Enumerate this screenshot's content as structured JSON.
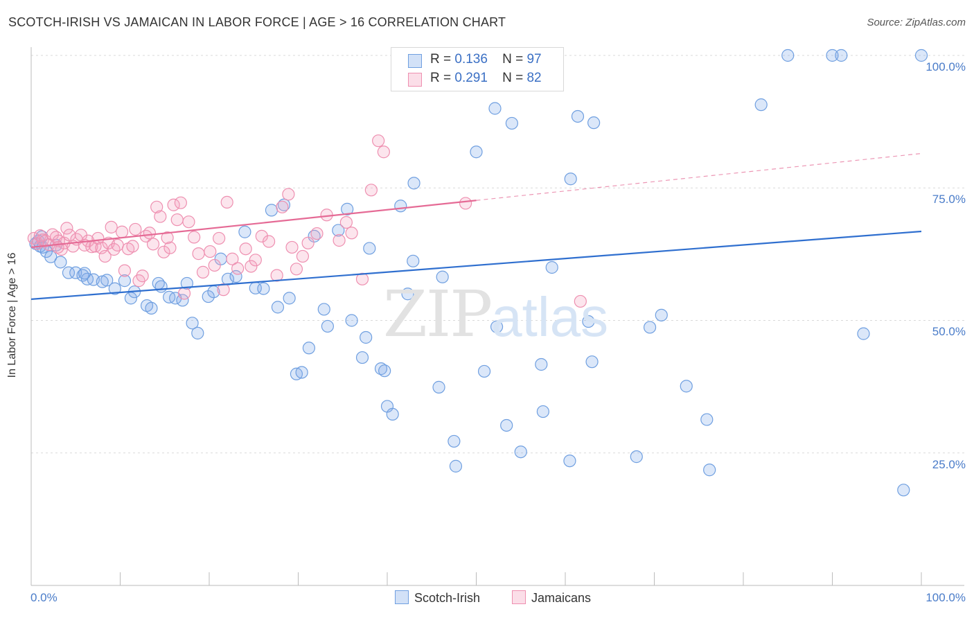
{
  "title": "SCOTCH-IRISH VS JAMAICAN IN LABOR FORCE | AGE > 16 CORRELATION CHART",
  "source": "Source: ZipAtlas.com",
  "watermark": {
    "zip": "ZIP",
    "atlas": "atlas"
  },
  "legend_top": [
    {
      "r_label": "R =",
      "r_value": "0.136",
      "n_label": "N =",
      "n_value": "97"
    },
    {
      "r_label": "R =",
      "r_value": "0.291",
      "n_label": "N =",
      "n_value": "82"
    }
  ],
  "legend_bottom": [
    {
      "name": "Scotch-Irish"
    },
    {
      "name": "Jamaicans"
    }
  ],
  "colors": {
    "scotch_fill": "rgba(127,170,232,0.28)",
    "scotch_stroke": "#6f9fe0",
    "scotch_line": "#2f6fcf",
    "jam_fill": "rgba(244,160,190,0.28)",
    "jam_stroke": "#ee8fb0",
    "jam_line": "#e56a95",
    "tick_text": "#4a7cc9",
    "grid": "#d9d9d9"
  },
  "chart_data": {
    "type": "scatter",
    "title": "SCOTCH-IRISH VS JAMAICAN IN LABOR FORCE | AGE > 16 CORRELATION CHART",
    "xlabel": "",
    "ylabel": "In Labor Force | Age > 16",
    "xlim": [
      0,
      100
    ],
    "ylim": [
      0,
      104
    ],
    "x_tick_labels": [
      "0.0%",
      "100.0%"
    ],
    "y_ticks": [
      25,
      50,
      75,
      100
    ],
    "y_tick_labels": [
      "25.0%",
      "50.0%",
      "75.0%",
      "100.0%"
    ],
    "grid": "horizontal dashed",
    "series": [
      {
        "name": "Scotch-Irish",
        "trend": {
          "x": [
            0,
            100
          ],
          "y": [
            54.0,
            66.8
          ],
          "dashed_from": null
        },
        "points": [
          [
            0.5,
            64.5
          ],
          [
            0.8,
            65.0
          ],
          [
            1.0,
            64.0
          ],
          [
            1.3,
            63.8
          ],
          [
            1.7,
            63.0
          ],
          [
            2.2,
            62.0
          ],
          [
            3.3,
            61.0
          ],
          [
            4.2,
            59.0
          ],
          [
            5.0,
            59.0
          ],
          [
            5.8,
            58.5
          ],
          [
            6.3,
            57.8
          ],
          [
            7.0,
            57.7
          ],
          [
            8.0,
            57.3
          ],
          [
            8.5,
            57.6
          ],
          [
            9.4,
            56.0
          ],
          [
            10.5,
            57.5
          ],
          [
            11.2,
            54.2
          ],
          [
            11.6,
            55.4
          ],
          [
            13.0,
            52.8
          ],
          [
            13.5,
            52.3
          ],
          [
            14.3,
            57.0
          ],
          [
            14.6,
            56.4
          ],
          [
            15.5,
            54.4
          ],
          [
            16.2,
            54.2
          ],
          [
            17.0,
            53.8
          ],
          [
            17.5,
            57.0
          ],
          [
            18.1,
            49.5
          ],
          [
            18.7,
            47.6
          ],
          [
            19.9,
            54.5
          ],
          [
            20.5,
            55.4
          ],
          [
            21.3,
            61.6
          ],
          [
            22.1,
            57.8
          ],
          [
            23.0,
            58.3
          ],
          [
            24.0,
            66.7
          ],
          [
            25.2,
            56.1
          ],
          [
            26.1,
            56.0
          ],
          [
            27.0,
            70.8
          ],
          [
            27.7,
            52.5
          ],
          [
            28.4,
            71.8
          ],
          [
            29.0,
            54.2
          ],
          [
            29.8,
            39.9
          ],
          [
            30.4,
            40.2
          ],
          [
            31.2,
            44.8
          ],
          [
            31.8,
            65.9
          ],
          [
            32.9,
            52.1
          ],
          [
            33.3,
            48.9
          ],
          [
            34.5,
            67.0
          ],
          [
            35.5,
            71.0
          ],
          [
            36.0,
            50.0
          ],
          [
            37.2,
            43.0
          ],
          [
            37.6,
            46.8
          ],
          [
            38.0,
            63.6
          ],
          [
            39.3,
            40.9
          ],
          [
            39.7,
            40.5
          ],
          [
            40.0,
            33.8
          ],
          [
            40.6,
            32.3
          ],
          [
            41.5,
            71.6
          ],
          [
            42.3,
            55.0
          ],
          [
            42.9,
            61.2
          ],
          [
            43.0,
            75.9
          ],
          [
            45.8,
            37.4
          ],
          [
            46.2,
            58.2
          ],
          [
            47.5,
            27.2
          ],
          [
            47.7,
            22.5
          ],
          [
            50.0,
            81.8
          ],
          [
            50.9,
            40.4
          ],
          [
            52.1,
            90.0
          ],
          [
            52.3,
            48.8
          ],
          [
            53.4,
            30.2
          ],
          [
            54.0,
            87.2
          ],
          [
            54.5,
            100.0
          ],
          [
            55.0,
            25.2
          ],
          [
            57.3,
            41.7
          ],
          [
            57.5,
            32.8
          ],
          [
            58.5,
            60.0
          ],
          [
            60.5,
            23.5
          ],
          [
            60.6,
            76.7
          ],
          [
            61.4,
            88.5
          ],
          [
            62.6,
            49.8
          ],
          [
            63.0,
            42.2
          ],
          [
            63.2,
            87.3
          ],
          [
            68.0,
            24.3
          ],
          [
            69.5,
            48.7
          ],
          [
            70.8,
            51.0
          ],
          [
            73.6,
            37.6
          ],
          [
            75.9,
            31.3
          ],
          [
            76.2,
            21.8
          ],
          [
            82.0,
            90.7
          ],
          [
            85.0,
            100.0
          ],
          [
            90.0,
            100.0
          ],
          [
            91.0,
            100.0
          ],
          [
            93.5,
            47.5
          ],
          [
            100.0,
            100.0
          ],
          [
            98.0,
            18.0
          ],
          [
            1.2,
            65.8
          ],
          [
            2.8,
            64.2
          ],
          [
            6.0,
            58.9
          ]
        ]
      },
      {
        "name": "Jamaicans",
        "trend": {
          "x": [
            0,
            100
          ],
          "y": [
            63.8,
            81.5
          ],
          "dashed_from": 50
        },
        "points": [
          [
            0.3,
            65.5
          ],
          [
            0.7,
            64.5
          ],
          [
            1.0,
            66.0
          ],
          [
            1.3,
            65.2
          ],
          [
            1.6,
            65.0
          ],
          [
            2.0,
            64.3
          ],
          [
            2.4,
            66.2
          ],
          [
            2.8,
            65.7
          ],
          [
            3.1,
            65.0
          ],
          [
            3.4,
            63.4
          ],
          [
            3.7,
            64.6
          ],
          [
            4.0,
            67.4
          ],
          [
            4.3,
            66.1
          ],
          [
            4.7,
            64.0
          ],
          [
            5.1,
            65.3
          ],
          [
            5.6,
            66.1
          ],
          [
            6.0,
            64.2
          ],
          [
            6.4,
            65.0
          ],
          [
            6.8,
            63.9
          ],
          [
            7.2,
            64.0
          ],
          [
            7.5,
            65.5
          ],
          [
            7.9,
            63.7
          ],
          [
            8.3,
            62.1
          ],
          [
            8.7,
            64.6
          ],
          [
            9.0,
            67.6
          ],
          [
            9.3,
            63.4
          ],
          [
            9.7,
            64.2
          ],
          [
            10.2,
            66.7
          ],
          [
            10.5,
            59.4
          ],
          [
            10.9,
            63.5
          ],
          [
            11.4,
            64.0
          ],
          [
            11.7,
            67.2
          ],
          [
            12.1,
            57.5
          ],
          [
            12.5,
            58.4
          ],
          [
            12.9,
            65.9
          ],
          [
            13.3,
            66.5
          ],
          [
            13.7,
            64.4
          ],
          [
            14.1,
            71.4
          ],
          [
            14.5,
            69.6
          ],
          [
            14.9,
            62.9
          ],
          [
            15.3,
            65.6
          ],
          [
            15.6,
            63.7
          ],
          [
            16.0,
            71.8
          ],
          [
            16.4,
            69.0
          ],
          [
            16.8,
            72.2
          ],
          [
            17.2,
            55.1
          ],
          [
            17.7,
            68.6
          ],
          [
            18.3,
            65.7
          ],
          [
            18.8,
            62.6
          ],
          [
            19.3,
            59.1
          ],
          [
            20.1,
            63.0
          ],
          [
            20.6,
            60.4
          ],
          [
            21.1,
            65.5
          ],
          [
            21.6,
            55.8
          ],
          [
            22.0,
            72.3
          ],
          [
            22.6,
            61.6
          ],
          [
            23.2,
            59.8
          ],
          [
            24.1,
            63.5
          ],
          [
            24.7,
            60.2
          ],
          [
            25.2,
            61.4
          ],
          [
            25.9,
            65.9
          ],
          [
            26.7,
            64.9
          ],
          [
            27.6,
            58.5
          ],
          [
            28.2,
            71.4
          ],
          [
            28.9,
            73.8
          ],
          [
            29.3,
            63.8
          ],
          [
            29.8,
            59.7
          ],
          [
            30.5,
            62.1
          ],
          [
            31.1,
            64.6
          ],
          [
            32.1,
            66.4
          ],
          [
            33.2,
            69.9
          ],
          [
            34.6,
            65.1
          ],
          [
            35.4,
            68.5
          ],
          [
            36.0,
            66.5
          ],
          [
            37.2,
            57.8
          ],
          [
            38.2,
            74.6
          ],
          [
            39.0,
            83.9
          ],
          [
            39.6,
            81.8
          ],
          [
            48.8,
            72.1
          ],
          [
            57.0,
            95.5
          ],
          [
            61.7,
            53.6
          ],
          [
            3.0,
            63.8
          ]
        ]
      }
    ]
  }
}
